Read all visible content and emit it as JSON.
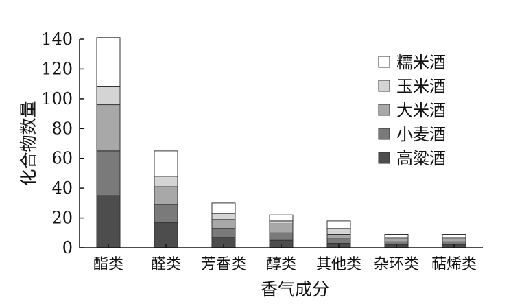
{
  "chart_data": {
    "type": "bar",
    "stacked": true,
    "xlabel": "香气成分",
    "ylabel": "化合物数量",
    "categories": [
      "酯类",
      "醛类",
      "芳香类",
      "醇类",
      "其他类",
      "杂环类",
      "萜烯类"
    ],
    "ylim": [
      0,
      140
    ],
    "yticks": [
      0,
      20,
      40,
      60,
      80,
      100,
      120,
      140
    ],
    "grid": false,
    "legend_position": "top-right",
    "series": [
      {
        "name": "高粱酒",
        "color": "#4d4d4d",
        "values": [
          35,
          17,
          7,
          5,
          3,
          2,
          2
        ]
      },
      {
        "name": "小麦酒",
        "color": "#7a7a7a",
        "values": [
          30,
          12,
          6,
          5,
          3,
          2,
          2
        ]
      },
      {
        "name": "大米酒",
        "color": "#a8a8a8",
        "values": [
          31,
          12,
          6,
          6,
          3,
          2,
          2
        ]
      },
      {
        "name": "玉米酒",
        "color": "#d4d4d4",
        "values": [
          12,
          7,
          4,
          2,
          4,
          1,
          1
        ]
      },
      {
        "name": "糯米酒",
        "color": "#ffffff",
        "values": [
          33,
          17,
          7,
          4,
          5,
          2,
          2
        ]
      }
    ]
  }
}
